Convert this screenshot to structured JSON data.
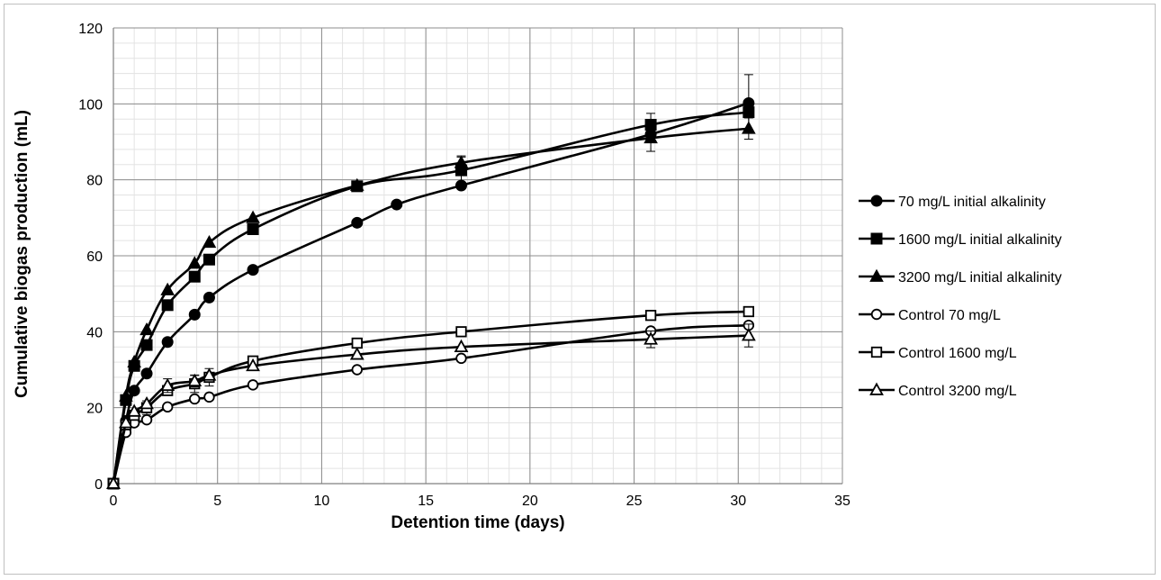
{
  "chart_data": {
    "type": "line",
    "title": "",
    "xlabel": "Detention time (days)",
    "ylabel": "Cumulative biogas production (mL)",
    "xlim": [
      0,
      35
    ],
    "ylim": [
      0,
      120
    ],
    "x_ticks": [
      "0",
      "5",
      "10",
      "15",
      "20",
      "25",
      "30",
      "35"
    ],
    "y_ticks": [
      "0",
      "20",
      "40",
      "60",
      "80",
      "100",
      "120"
    ],
    "grid": true,
    "minor_grid": true,
    "legend_position": "right",
    "series": [
      {
        "name": "70 mg/L initial alkalinity",
        "marker": "circle-filled",
        "x": [
          0,
          0.6,
          1,
          1.6,
          2.6,
          3.9,
          4.6,
          6.7,
          11.7,
          13.6,
          16.7,
          25.8,
          30.5
        ],
        "y": [
          0,
          16.5,
          24.5,
          29,
          37.3,
          44.5,
          49,
          56.3,
          68.7,
          73.5,
          78.5,
          92,
          100.2
        ],
        "err": [
          0,
          0,
          0,
          0,
          0,
          0,
          0,
          0,
          0,
          0,
          0,
          0,
          7.5
        ]
      },
      {
        "name": "1600 mg/L initial alkalinity",
        "marker": "square-filled",
        "x": [
          0,
          0.6,
          1,
          1.6,
          2.6,
          3.9,
          4.6,
          6.7,
          11.7,
          16.7,
          25.8,
          30.5
        ],
        "y": [
          0,
          22,
          31,
          36.5,
          47,
          54.5,
          59,
          67,
          78.3,
          82.5,
          94.5,
          97.8
        ],
        "err": [
          0,
          0,
          0,
          0,
          0,
          0,
          0,
          0,
          0,
          3.5,
          3,
          0
        ]
      },
      {
        "name": "3200 mg/L initial alkalinity",
        "marker": "triangle-filled",
        "x": [
          0,
          0.6,
          1,
          1.6,
          2.6,
          3.9,
          4.6,
          6.7,
          11.7,
          16.7,
          25.8,
          30.5
        ],
        "y": [
          0,
          23,
          32,
          40.5,
          51,
          58,
          63.5,
          70,
          78.5,
          84.5,
          91,
          93.5
        ],
        "err": [
          0,
          0,
          0,
          0,
          0,
          0,
          0,
          0,
          0,
          1.8,
          3.5,
          2.8
        ]
      },
      {
        "name": "Control 70 mg/L",
        "marker": "circle-open",
        "x": [
          0,
          0.6,
          1,
          1.6,
          2.6,
          3.9,
          4.6,
          6.7,
          11.7,
          16.7,
          25.8,
          30.5
        ],
        "y": [
          0,
          13.5,
          16,
          16.8,
          20.2,
          22.3,
          22.8,
          26,
          30,
          33,
          40.2,
          41.7
        ],
        "err": [
          0,
          0,
          0,
          0,
          0,
          0,
          0,
          0,
          0,
          0,
          0,
          0
        ]
      },
      {
        "name": "Control 1600 mg/L",
        "marker": "square-open",
        "x": [
          0,
          0.6,
          1,
          1.6,
          2.6,
          3.9,
          4.6,
          6.7,
          11.7,
          16.7,
          25.8,
          30.5
        ],
        "y": [
          0,
          15.5,
          18,
          20,
          24.5,
          26.3,
          28,
          32.3,
          37,
          40,
          44.3,
          45.3
        ],
        "err": [
          0,
          0,
          0,
          1.8,
          0,
          2.3,
          2.3,
          0,
          0,
          0,
          0,
          0
        ]
      },
      {
        "name": "Control 3200 mg/L",
        "marker": "triangle-open",
        "x": [
          0,
          0.6,
          1,
          1.6,
          2.6,
          3.9,
          4.6,
          6.7,
          11.7,
          16.7,
          25.8,
          30.5
        ],
        "y": [
          0,
          16,
          19,
          21,
          25.8,
          27,
          28.5,
          31,
          34,
          36,
          38,
          39
        ],
        "err": [
          0,
          0,
          0,
          0,
          1.8,
          1.5,
          0,
          0,
          0,
          0,
          2.2,
          3
        ]
      }
    ]
  }
}
